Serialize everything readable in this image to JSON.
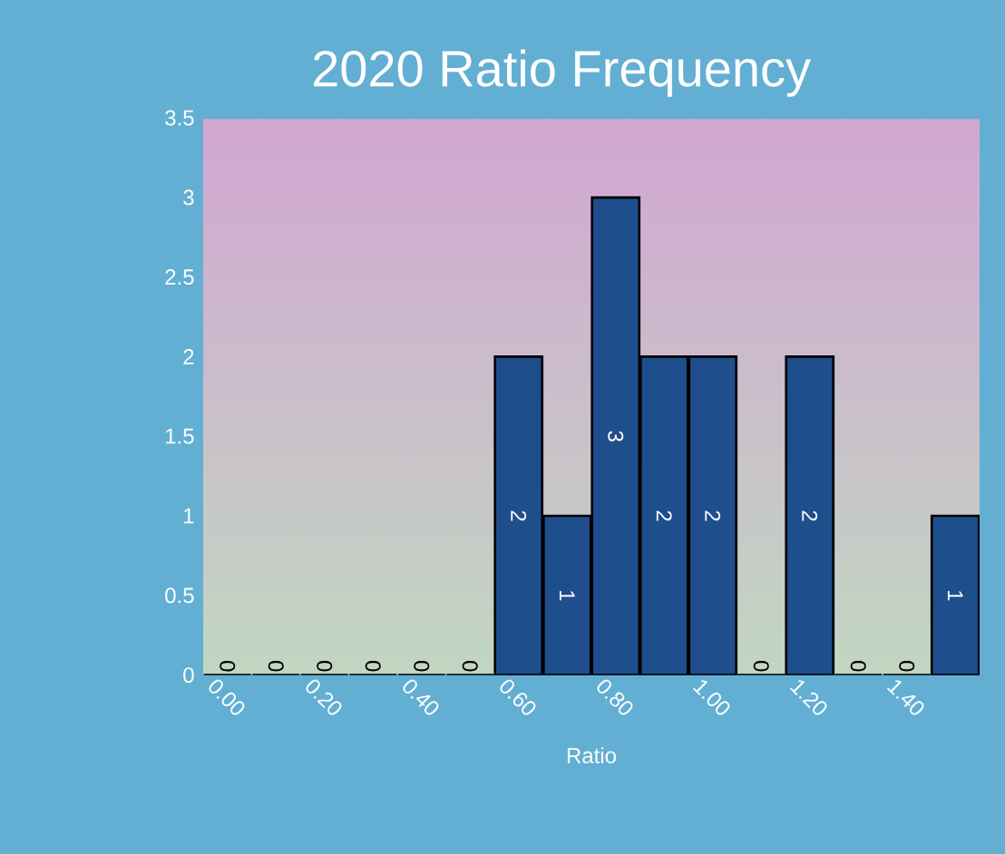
{
  "chart_data": {
    "type": "bar",
    "title": "2020 Ratio Frequency",
    "xlabel": "Ratio",
    "categories": [
      "0.00",
      null,
      "0.20",
      null,
      "0.40",
      null,
      "0.60",
      null,
      "0.80",
      null,
      "1.00",
      null,
      "1.20",
      null,
      "1.40",
      null
    ],
    "values": [
      0,
      0,
      0,
      0,
      0,
      0,
      2,
      1,
      3,
      2,
      2,
      0,
      2,
      0,
      0,
      1
    ],
    "color": "#1f4e8c",
    "ylim": [
      0,
      3.5
    ],
    "yticks": [
      0,
      0.5,
      1,
      1.5,
      2,
      2.5,
      3,
      3.5
    ],
    "data_labels": true
  }
}
